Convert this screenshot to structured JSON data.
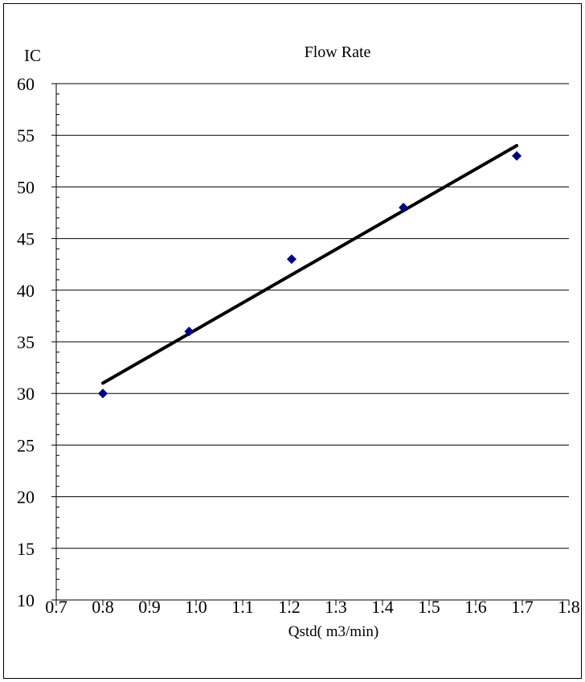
{
  "chart_data": {
    "type": "scatter",
    "title": "Flow Rate",
    "xlabel": "Qstd( m3/min)",
    "ylabel": "IC",
    "xlim": [
      0.7,
      1.8
    ],
    "ylim": [
      10,
      60
    ],
    "xticks": [
      "0.7",
      "0.8",
      "0.9",
      "1.0",
      "1.1",
      "1.2",
      "1.3",
      "1.4",
      "1.5",
      "1.6",
      "1.7",
      "1.8"
    ],
    "yticks": [
      "10",
      "15",
      "20",
      "25",
      "30",
      "35",
      "40",
      "45",
      "50",
      "55",
      "60"
    ],
    "grid": "horizontal",
    "legend": "none",
    "series": [
      {
        "kind": "points",
        "marker": "diamond",
        "color": "#000080",
        "x": [
          0.8,
          0.985,
          1.205,
          1.445,
          1.688
        ],
        "y": [
          30,
          36,
          43,
          48,
          53
        ]
      },
      {
        "kind": "trendline",
        "color": "#000000",
        "x": [
          0.8,
          1.688
        ],
        "y": [
          31.0,
          54.0
        ]
      }
    ]
  }
}
